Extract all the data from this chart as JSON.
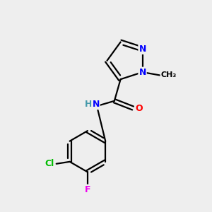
{
  "background_color": "#eeeeee",
  "bond_color": "#000000",
  "atom_colors": {
    "N": "#0000ff",
    "O": "#ff0000",
    "Cl": "#00bb00",
    "F": "#ee00ee",
    "C": "#000000",
    "H": "#4499aa"
  },
  "figsize": [
    3.0,
    3.0
  ],
  "dpi": 100
}
